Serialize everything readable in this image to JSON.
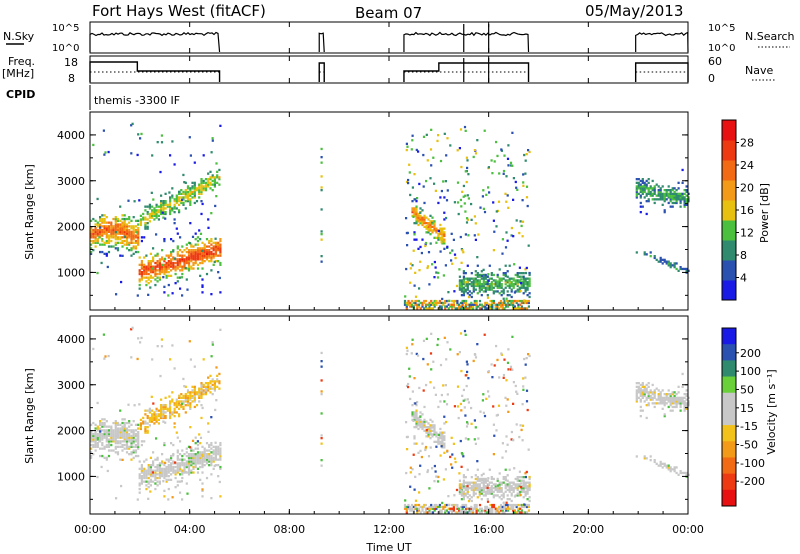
{
  "header": {
    "station": "Fort Hays West (fitACF)",
    "beam": "Beam 07",
    "date": "05/May/2013"
  },
  "top_panels": {
    "nsky_label": "N.Sky",
    "nsearch_label": "N.Search",
    "noise_ticks": [
      "10^5",
      "10^0"
    ],
    "freq_label_1": "Freq.",
    "freq_label_2": "[MHz]",
    "freq_ticks": [
      "18",
      "8"
    ],
    "nave_label": "Nave",
    "nave_ticks": [
      "60",
      "0"
    ],
    "cpid_label": "CPID",
    "cpid_value": "themis -3300 IF"
  },
  "x_axis": {
    "label": "Time UT",
    "ticks": [
      "00:00",
      "04:00",
      "08:00",
      "12:00",
      "16:00",
      "20:00",
      "00:00"
    ]
  },
  "power_panel": {
    "ylabel": "Slant Range [km]",
    "yticks": [
      "1000",
      "2000",
      "3000",
      "4000"
    ],
    "colorbar_label": "Power [dB]",
    "colorbar_ticks": [
      "4",
      "8",
      "12",
      "16",
      "20",
      "24",
      "28"
    ],
    "colors": [
      "#1a1ae6",
      "#2a50b0",
      "#2f8a6e",
      "#4bbf3e",
      "#e8c010",
      "#f39a18",
      "#f26a14",
      "#ee3a12",
      "#e81010"
    ]
  },
  "velocity_panel": {
    "ylabel": "Slant Range [km]",
    "yticks": [
      "1000",
      "2000",
      "3000",
      "4000"
    ],
    "colorbar_label": "Velocity [m s⁻¹]",
    "colorbar_ticks": [
      "200",
      "100",
      "50",
      "15",
      "-15",
      "-50",
      "-100",
      "-200"
    ],
    "colors": [
      "#1a1ae6",
      "#2a50b0",
      "#2f8a6e",
      "#6ad03a",
      "#c8c8c8",
      "#c8c8c8",
      "#f2c21a",
      "#f39a18",
      "#f26a14",
      "#ee3a12",
      "#e81010"
    ]
  },
  "chart_data": {
    "type": "heatmap",
    "x_range_hours": [
      0,
      24
    ],
    "y_range_km": [
      180,
      4500
    ],
    "operating_intervals_hours": [
      [
        0,
        5.2
      ],
      [
        9.2,
        9.4
      ],
      [
        12.6,
        17.6
      ],
      [
        21.9,
        24
      ]
    ],
    "echo_regions": [
      {
        "t": [
          0,
          1.9
        ],
        "range_km": [
          1500,
          2200
        ],
        "power_db": 20,
        "velocity": -15
      },
      {
        "t": [
          1.9,
          5.2
        ],
        "range_km": [
          800,
          1700
        ],
        "power_db": 22,
        "velocity": -15
      },
      {
        "t": [
          2.0,
          5.2
        ],
        "range_km": [
          2000,
          3500
        ],
        "power_db": 14,
        "velocity": -50
      },
      {
        "t": [
          13.0,
          14.0
        ],
        "range_km": [
          1800,
          2600
        ],
        "power_db": 18,
        "velocity": -15
      },
      {
        "t": [
          15.0,
          17.6
        ],
        "range_km": [
          500,
          1000
        ],
        "power_db": 12,
        "velocity": -15
      },
      {
        "t": [
          21.9,
          24
        ],
        "range_km": [
          2300,
          3200
        ],
        "power_db": 12,
        "velocity": -15
      }
    ]
  }
}
